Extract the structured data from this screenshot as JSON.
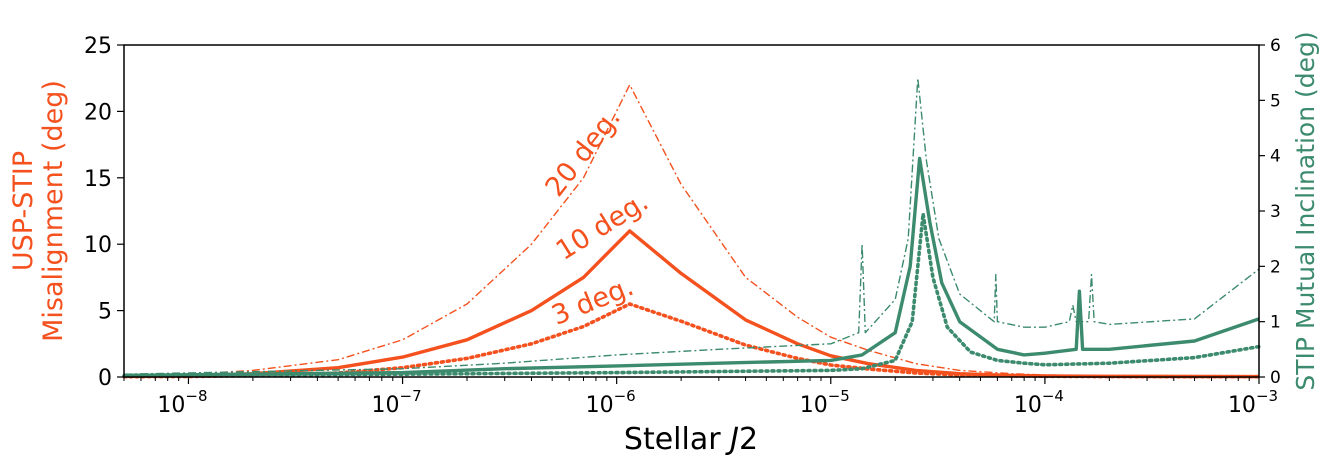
{
  "chart_data": {
    "type": "line",
    "x_scale": "log",
    "xlim": [
      5e-09,
      0.001
    ],
    "xlabel": "Stellar J2",
    "x_ticks": [
      {
        "value": 1e-08,
        "label": "10",
        "exp": "−8"
      },
      {
        "value": 1e-07,
        "label": "10",
        "exp": "−7"
      },
      {
        "value": 1e-06,
        "label": "10",
        "exp": "−6"
      },
      {
        "value": 1e-05,
        "label": "10",
        "exp": "−5"
      },
      {
        "value": 0.0001,
        "label": "10",
        "exp": "−4"
      },
      {
        "value": 0.001,
        "label": "10",
        "exp": "−3"
      }
    ],
    "y_left": {
      "label_line1": "USP-STIP",
      "label_line2": "Misalignment (deg)",
      "ylim": [
        0,
        25
      ],
      "ticks": [
        "0",
        "5",
        "10",
        "15",
        "20",
        "25"
      ],
      "color": "#f4511e"
    },
    "y_right": {
      "label": "STIP Mutual Inclination (deg)",
      "ylim": [
        0,
        6
      ],
      "ticks": [
        "0",
        "1",
        "2",
        "3",
        "4",
        "5",
        "6"
      ],
      "color": "#3d8b6e"
    },
    "annotations": [
      {
        "text": "20 deg.",
        "x": 7.5e-07,
        "y": 16.5,
        "angle": -52
      },
      {
        "text": "10 deg.",
        "x": 9e-07,
        "y": 10.8,
        "angle": -32
      },
      {
        "text": "3 deg.",
        "x": 8e-07,
        "y": 5.1,
        "angle": -22
      }
    ],
    "series": [
      {
        "axis": "left",
        "style": "dashdot",
        "color": "#f4511e",
        "x": [
          5e-09,
          1e-08,
          2e-08,
          5e-08,
          1e-07,
          2e-07,
          4e-07,
          7e-07,
          1.15e-06,
          2e-06,
          4e-06,
          7e-06,
          1e-05,
          1.5e-05,
          2.5e-05,
          4e-05,
          7e-05,
          0.0001,
          0.0002,
          0.001
        ],
        "y": [
          0.05,
          0.2,
          0.5,
          1.3,
          2.8,
          5.5,
          10,
          15,
          22,
          14.5,
          7.5,
          4.5,
          3.0,
          2.0,
          1.0,
          0.5,
          0.25,
          0.15,
          0.1,
          0.05
        ]
      },
      {
        "axis": "left",
        "style": "solid",
        "color": "#f4511e",
        "x": [
          5e-09,
          1e-08,
          2e-08,
          5e-08,
          1e-07,
          2e-07,
          4e-07,
          7e-07,
          1.15e-06,
          2e-06,
          4e-06,
          7e-06,
          1e-05,
          1.5e-05,
          2.5e-05,
          4e-05,
          7e-05,
          0.0001,
          0.0002,
          0.001
        ],
        "y": [
          0.05,
          0.1,
          0.25,
          0.7,
          1.5,
          2.8,
          5.0,
          7.5,
          11.0,
          7.8,
          4.3,
          2.5,
          1.6,
          1.0,
          0.5,
          0.25,
          0.12,
          0.08,
          0.05,
          0.03
        ]
      },
      {
        "axis": "left",
        "style": "dotted",
        "color": "#f4511e",
        "x": [
          5e-09,
          1e-08,
          2e-08,
          5e-08,
          1e-07,
          2e-07,
          4e-07,
          7e-07,
          1.15e-06,
          2e-06,
          4e-06,
          7e-06,
          1e-05,
          1.5e-05,
          2.5e-05,
          4e-05,
          7e-05,
          0.0001,
          0.0002,
          0.001
        ],
        "y": [
          0.02,
          0.04,
          0.1,
          0.3,
          0.7,
          1.4,
          2.5,
          3.8,
          5.5,
          4.2,
          2.4,
          1.4,
          0.9,
          0.6,
          0.3,
          0.15,
          0.08,
          0.05,
          0.03,
          0.02
        ]
      },
      {
        "axis": "right",
        "style": "dashdot",
        "color": "#3d8b6e",
        "x": [
          5e-09,
          1e-07,
          3e-07,
          1e-06,
          3e-06,
          1e-05,
          1.35e-05,
          1.4e-05,
          1.45e-05,
          2e-05,
          2.3e-05,
          2.55e-05,
          2.8e-05,
          3.2e-05,
          4e-05,
          5.8e-05,
          5.9e-05,
          6e-05,
          8e-05,
          0.0001,
          0.00013,
          0.000135,
          0.00014,
          0.00016,
          0.000165,
          0.00017,
          0.0002,
          0.0005,
          0.001
        ],
        "y": [
          0.05,
          0.15,
          0.25,
          0.4,
          0.5,
          0.6,
          0.8,
          2.4,
          0.8,
          1.4,
          2.5,
          5.4,
          3.9,
          2.5,
          1.5,
          1.0,
          1.85,
          1.0,
          0.9,
          0.9,
          1.0,
          1.3,
          1.0,
          1.0,
          1.85,
          1.0,
          0.95,
          1.05,
          1.95
        ]
      },
      {
        "axis": "right",
        "style": "solid",
        "color": "#3d8b6e",
        "x": [
          5e-09,
          1e-07,
          3e-07,
          1e-06,
          3e-06,
          1e-05,
          1.4e-05,
          2e-05,
          2.35e-05,
          2.6e-05,
          2.9e-05,
          3.3e-05,
          4e-05,
          6e-05,
          8e-05,
          0.0001,
          0.00014,
          0.000145,
          0.00015,
          0.0002,
          0.0005,
          0.001
        ],
        "y": [
          0.03,
          0.08,
          0.15,
          0.2,
          0.25,
          0.3,
          0.4,
          0.8,
          2.0,
          3.95,
          2.8,
          1.7,
          1.0,
          0.5,
          0.4,
          0.43,
          0.5,
          1.55,
          0.5,
          0.5,
          0.65,
          1.05
        ]
      },
      {
        "axis": "right",
        "style": "dotted",
        "color": "#3d8b6e",
        "x": [
          5e-09,
          1e-07,
          1e-06,
          3e-06,
          1e-05,
          1.4e-05,
          2e-05,
          2.4e-05,
          2.7e-05,
          3e-05,
          3.5e-05,
          4.5e-05,
          6e-05,
          8e-05,
          0.0001,
          0.0002,
          0.0005,
          0.001
        ],
        "y": [
          0.02,
          0.05,
          0.08,
          0.1,
          0.12,
          0.15,
          0.3,
          1.0,
          2.95,
          1.8,
          0.9,
          0.45,
          0.3,
          0.25,
          0.22,
          0.25,
          0.35,
          0.55
        ]
      }
    ]
  }
}
